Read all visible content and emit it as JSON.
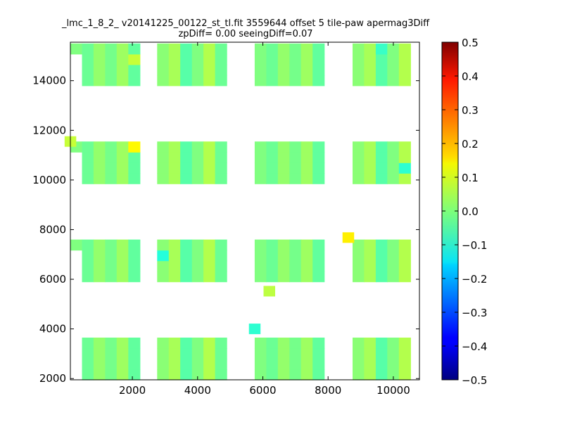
{
  "chart_data": {
    "type": "heatmap",
    "title_line1": "_lmc_1_8_2_ v20141225_00122_st_tl.fit 3559644 offset 5 tile-paw apermag3Diff",
    "title_line2": "zpDiff= 0.00 seeingDiff=0.07",
    "xlim": [
      100,
      10800
    ],
    "ylim": [
      1950,
      15550
    ],
    "x_ticks": [
      2000,
      4000,
      6000,
      8000,
      10000
    ],
    "y_ticks": [
      2000,
      4000,
      6000,
      8000,
      10000,
      12000,
      14000
    ],
    "colorbar": {
      "range": [
        -0.5,
        0.5
      ],
      "ticks": [
        "0.5",
        "0.4",
        "0.3",
        "0.2",
        "0.1",
        "0.0",
        "−0.1",
        "−0.2",
        "−0.3",
        "−0.4",
        "−0.5"
      ],
      "colormap": "jet"
    },
    "cell_size": {
      "dx": 355,
      "dy": 425
    },
    "x_columns": [
      {
        "x0": 100,
        "n": 3,
        "start_col": 0
      },
      {
        "x0": 2760,
        "n": 3,
        "start_col": 3
      },
      {
        "x0": 5750,
        "n": 3,
        "start_col": 6
      },
      {
        "x0": 8750,
        "n": 3,
        "start_col": 9
      }
    ],
    "detector_rows": [
      {
        "y0": 1950,
        "n": 4
      },
      {
        "y0": 5900,
        "n": 4
      },
      {
        "y0": 9850,
        "n": 4
      },
      {
        "y0": 13800,
        "n": 4
      }
    ],
    "default_value": 0.0,
    "value_pattern": [
      0.0,
      -0.02,
      0.02,
      -0.01,
      0.03,
      -0.03,
      0.01,
      0.04,
      -0.04,
      0.0,
      0.05,
      -0.02
    ],
    "highlights": [
      {
        "x": 2050,
        "y": 11230,
        "value": 0.13
      },
      {
        "x": 8620,
        "y": 7680,
        "value": 0.14
      },
      {
        "x": 5050,
        "y": 11100,
        "value": -0.1
      },
      {
        "x": 2800,
        "y": 6870,
        "value": -0.09
      },
      {
        "x": 5750,
        "y": 4000,
        "value": -0.08
      },
      {
        "x": 9800,
        "y": 15400,
        "value": -0.07
      },
      {
        "x": 10500,
        "y": 10500,
        "value": -0.08
      },
      {
        "x": 8620,
        "y": 14550,
        "value": 0.08
      },
      {
        "x": 2050,
        "y": 14900,
        "value": 0.07
      },
      {
        "x": 100,
        "y": 11550,
        "value": 0.07
      },
      {
        "x": 6200,
        "y": 5520,
        "value": 0.06
      }
    ],
    "blanks": [
      {
        "x0": 100,
        "x1": 700,
        "y0": 1950,
        "y1": 3800
      },
      {
        "x0": 100,
        "x1": 700,
        "y0": 5900,
        "y1": 7500
      },
      {
        "x0": 100,
        "x1": 700,
        "y0": 9850,
        "y1": 11500
      },
      {
        "x0": 100,
        "x1": 700,
        "y0": 13800,
        "y1": 15200
      },
      {
        "x0": 2050,
        "x1": 2400,
        "y0": 1950,
        "y1": 3500
      },
      {
        "x0": 2050,
        "x1": 2400,
        "y0": 5900,
        "y1": 6800
      },
      {
        "x0": 2050,
        "x1": 2400,
        "y0": 9850,
        "y1": 10850
      },
      {
        "x0": 2050,
        "x1": 2400,
        "y0": 13800,
        "y1": 14300
      },
      {
        "x0": 8400,
        "x1": 8750,
        "y0": 1950,
        "y1": 3350
      },
      {
        "x0": 8400,
        "x1": 8750,
        "y0": 5900,
        "y1": 6600
      },
      {
        "x0": 8400,
        "x1": 8750,
        "y0": 9850,
        "y1": 11800
      },
      {
        "x0": 8400,
        "x1": 8750,
        "y0": 13800,
        "y1": 14400
      },
      {
        "x0": 5750,
        "x1": 6100,
        "y0": 9850,
        "y1": 10400
      }
    ]
  }
}
